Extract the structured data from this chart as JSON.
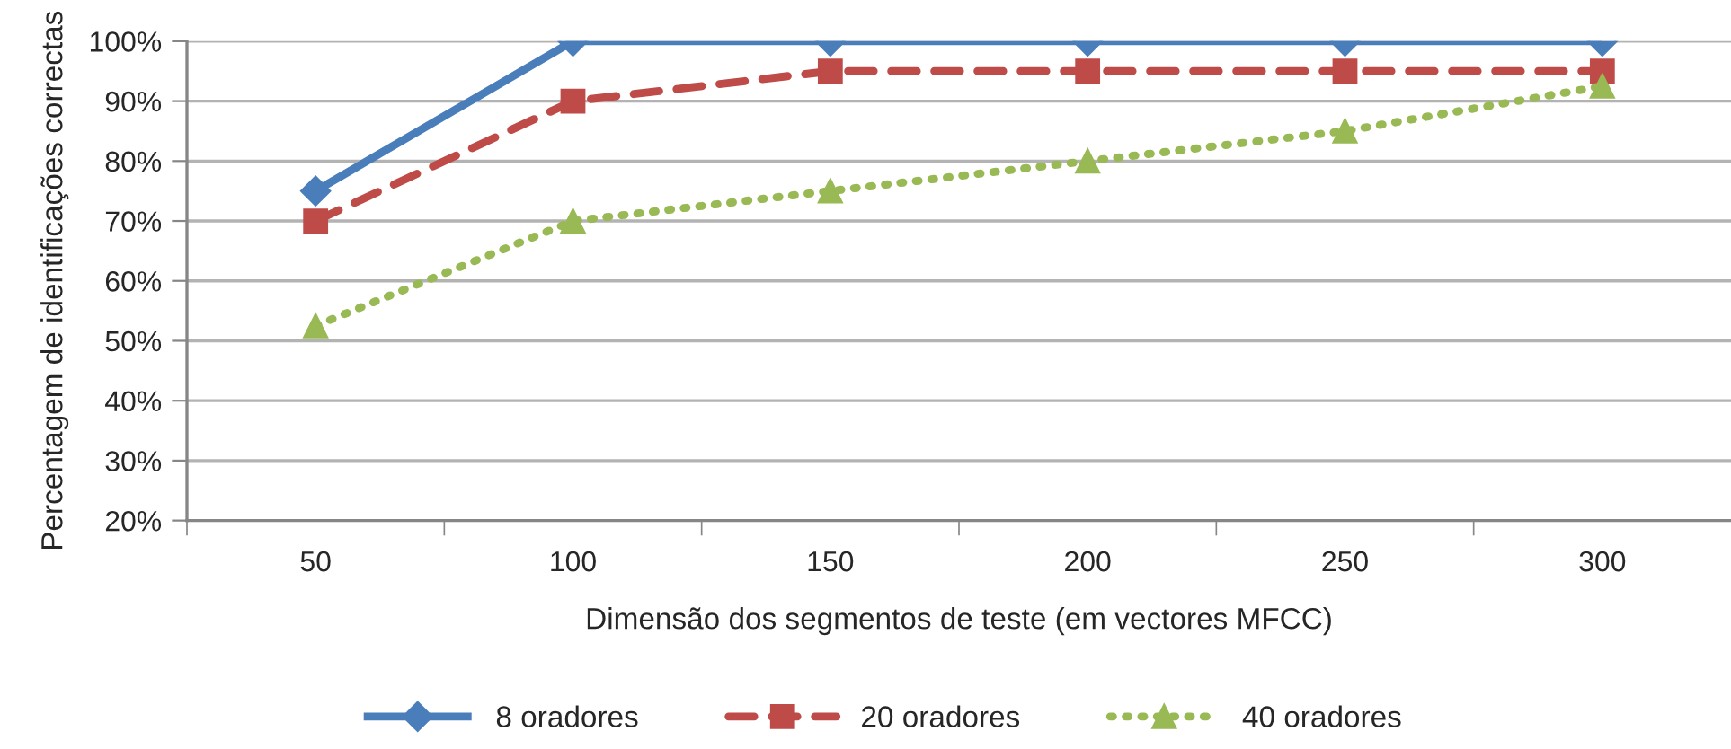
{
  "chart_data": {
    "type": "line",
    "xlabel": "Dimensão dos segmentos de teste (em vectores MFCC)",
    "ylabel": "Percentagem de identificações correctas",
    "categories": [
      "50",
      "100",
      "150",
      "200",
      "250",
      "300"
    ],
    "series": [
      {
        "name": "8 oradores",
        "color": "#4a7ebb",
        "marker": "diamond",
        "line_style": "solid",
        "values": [
          75,
          100,
          100,
          100,
          100,
          100
        ]
      },
      {
        "name": "20 oradores",
        "color": "#be4b48",
        "marker": "square",
        "line_style": "dashed",
        "values": [
          70,
          90,
          95,
          95,
          95,
          95
        ]
      },
      {
        "name": "40 oradores",
        "color": "#98b954",
        "marker": "triangle",
        "line_style": "dotted",
        "values": [
          52.5,
          70,
          75,
          80,
          85,
          92.5
        ]
      }
    ],
    "ylim": [
      20,
      100
    ],
    "yticks": [
      {
        "value": 20,
        "label": "20%"
      },
      {
        "value": 30,
        "label": "30%"
      },
      {
        "value": 40,
        "label": "40%"
      },
      {
        "value": 50,
        "label": "50%"
      },
      {
        "value": 60,
        "label": "60%"
      },
      {
        "value": 70,
        "label": "70%"
      },
      {
        "value": 80,
        "label": "80%"
      },
      {
        "value": 90,
        "label": "90%"
      },
      {
        "value": 100,
        "label": "100%"
      }
    ],
    "grid": "y",
    "legend": "bottom"
  }
}
